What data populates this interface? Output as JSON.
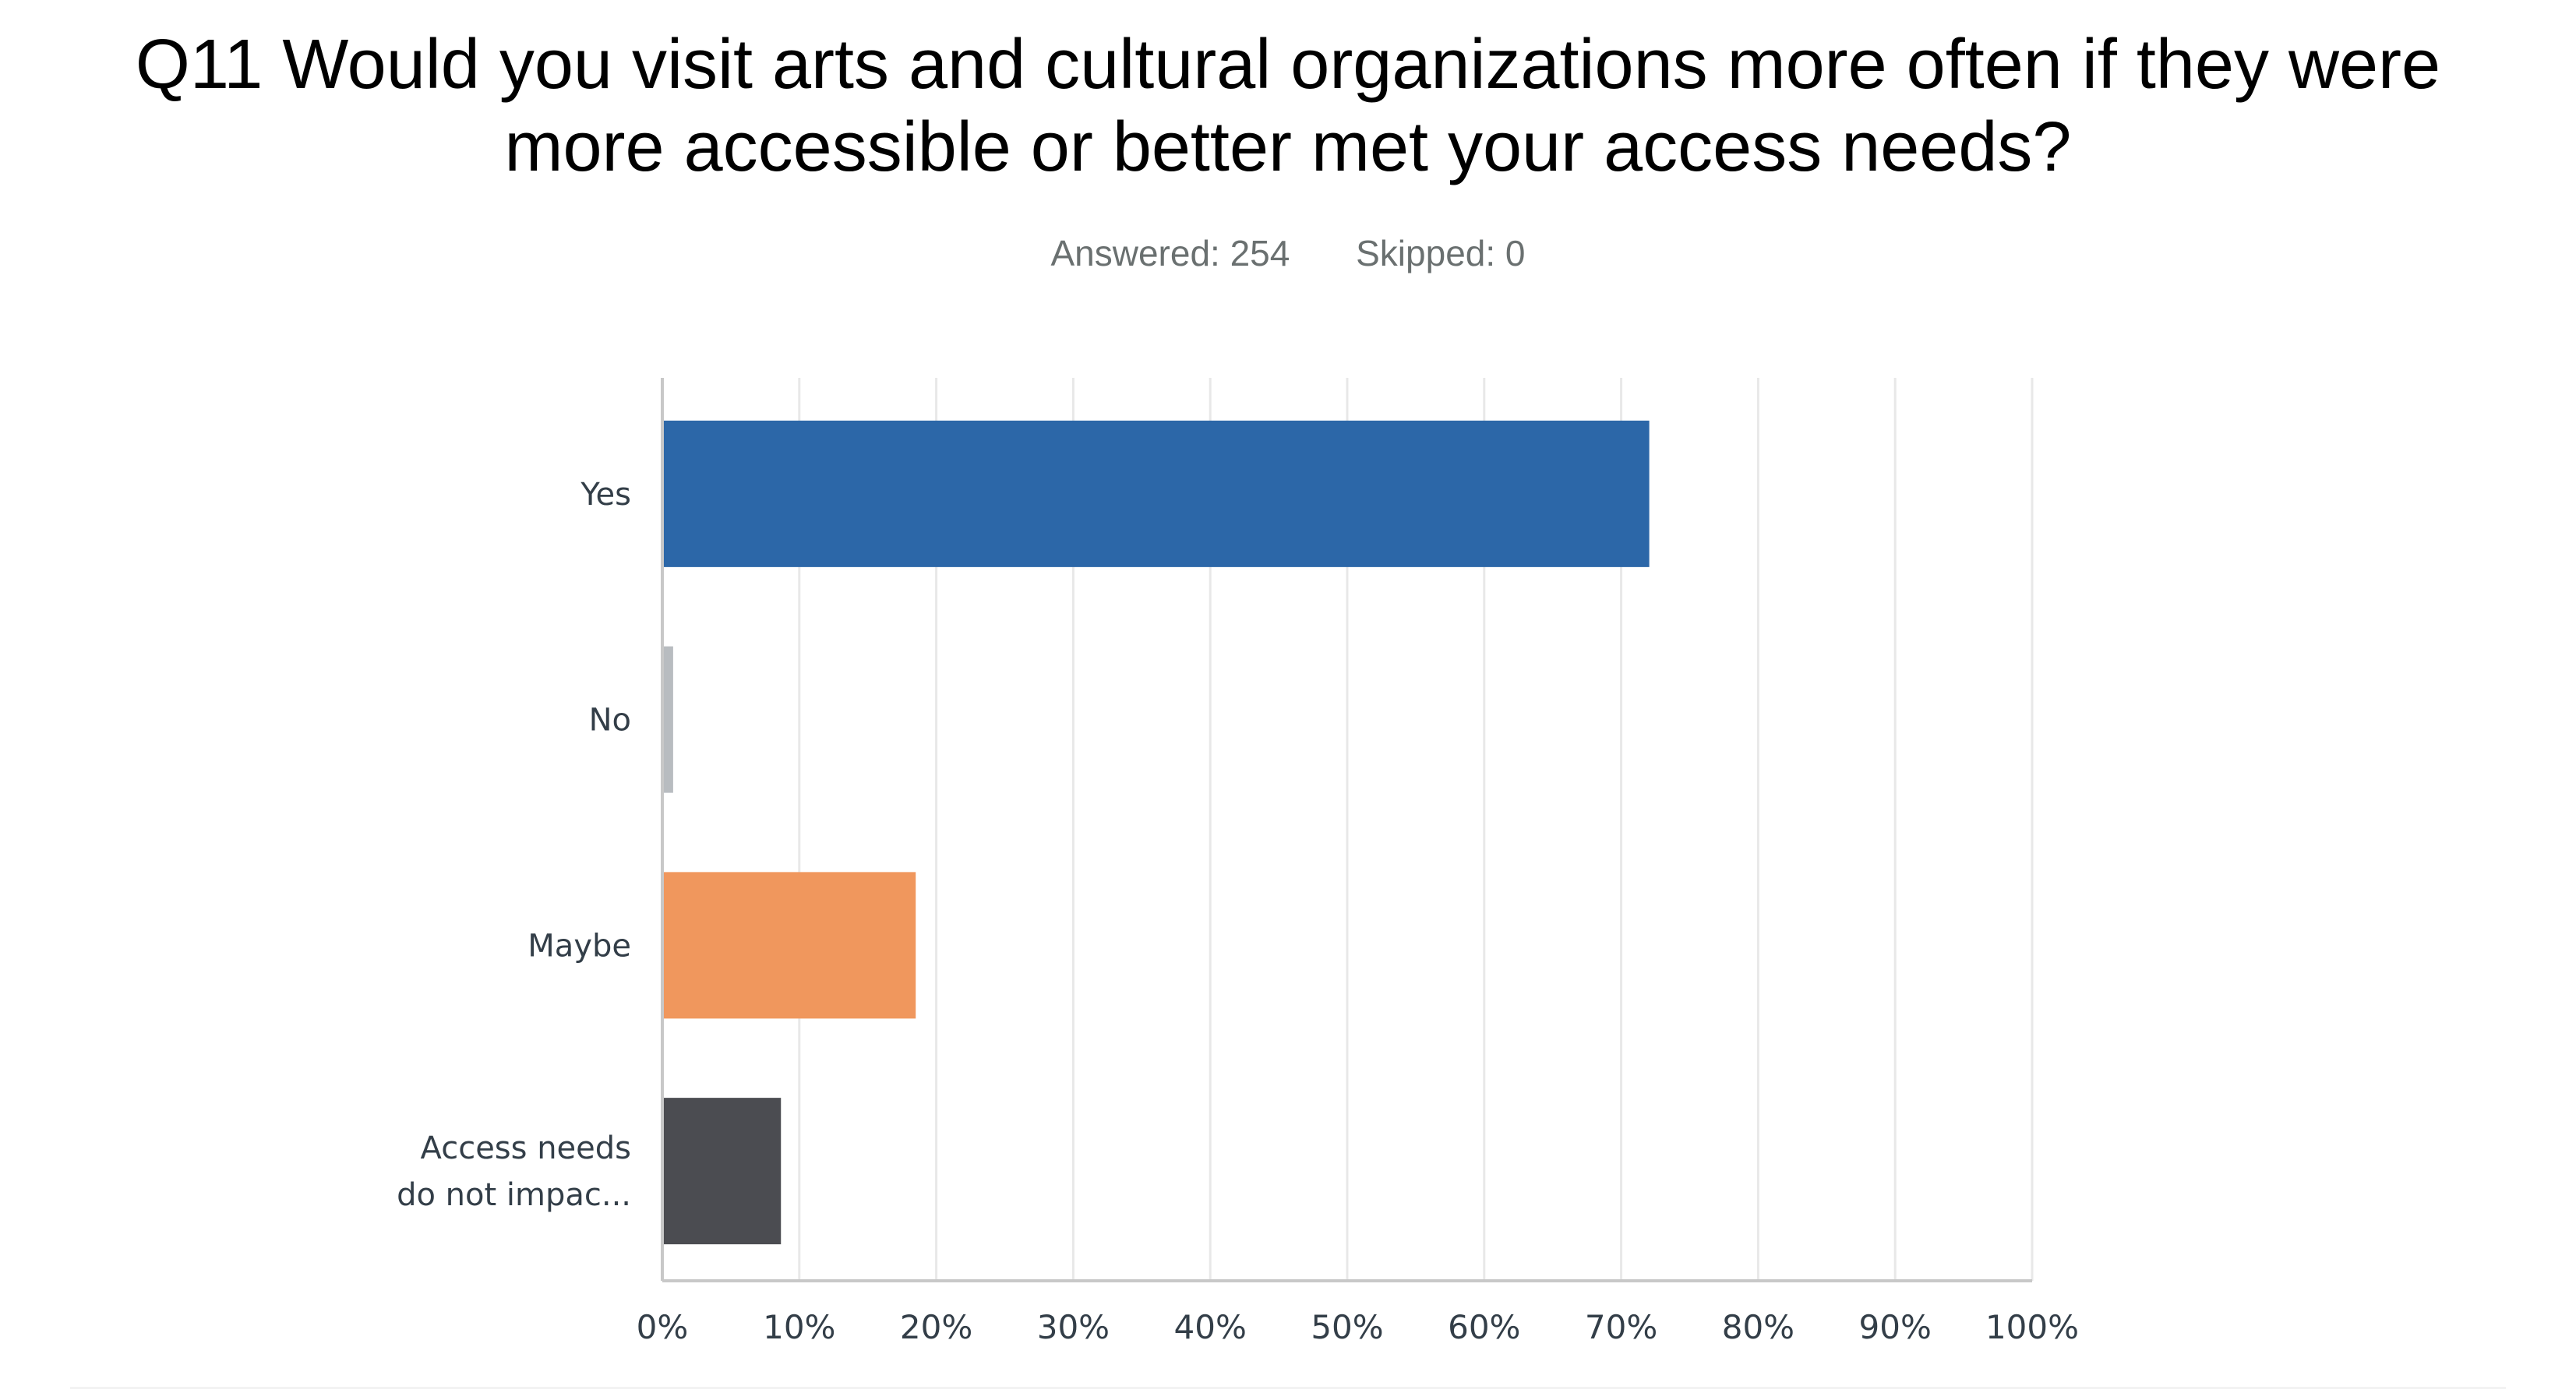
{
  "title_line1": "Q11 Would you visit arts and cultural organizations more often if they were",
  "title_line2": "more accessible or better met your access needs?",
  "answered_label": "Answered: 254",
  "skipped_label": "Skipped: 0",
  "chart_data": {
    "type": "bar",
    "orientation": "horizontal",
    "title": "Q11 Would you visit arts and cultural organizations more often if they were more accessible or better met your access needs?",
    "categories": [
      [
        "Yes"
      ],
      [
        "No"
      ],
      [
        "Maybe"
      ],
      [
        "Access needs",
        "do not impac..."
      ]
    ],
    "values": [
      72.05,
      0.79,
      18.5,
      8.66
    ],
    "colors": [
      "#2c67a8",
      "#b8bcc0",
      "#f0975d",
      "#4b4c51"
    ],
    "xlim": [
      0,
      100
    ],
    "xticks": [
      "0%",
      "10%",
      "20%",
      "30%",
      "40%",
      "50%",
      "60%",
      "70%",
      "80%",
      "90%",
      "100%"
    ],
    "grid": true,
    "legend": "none"
  }
}
